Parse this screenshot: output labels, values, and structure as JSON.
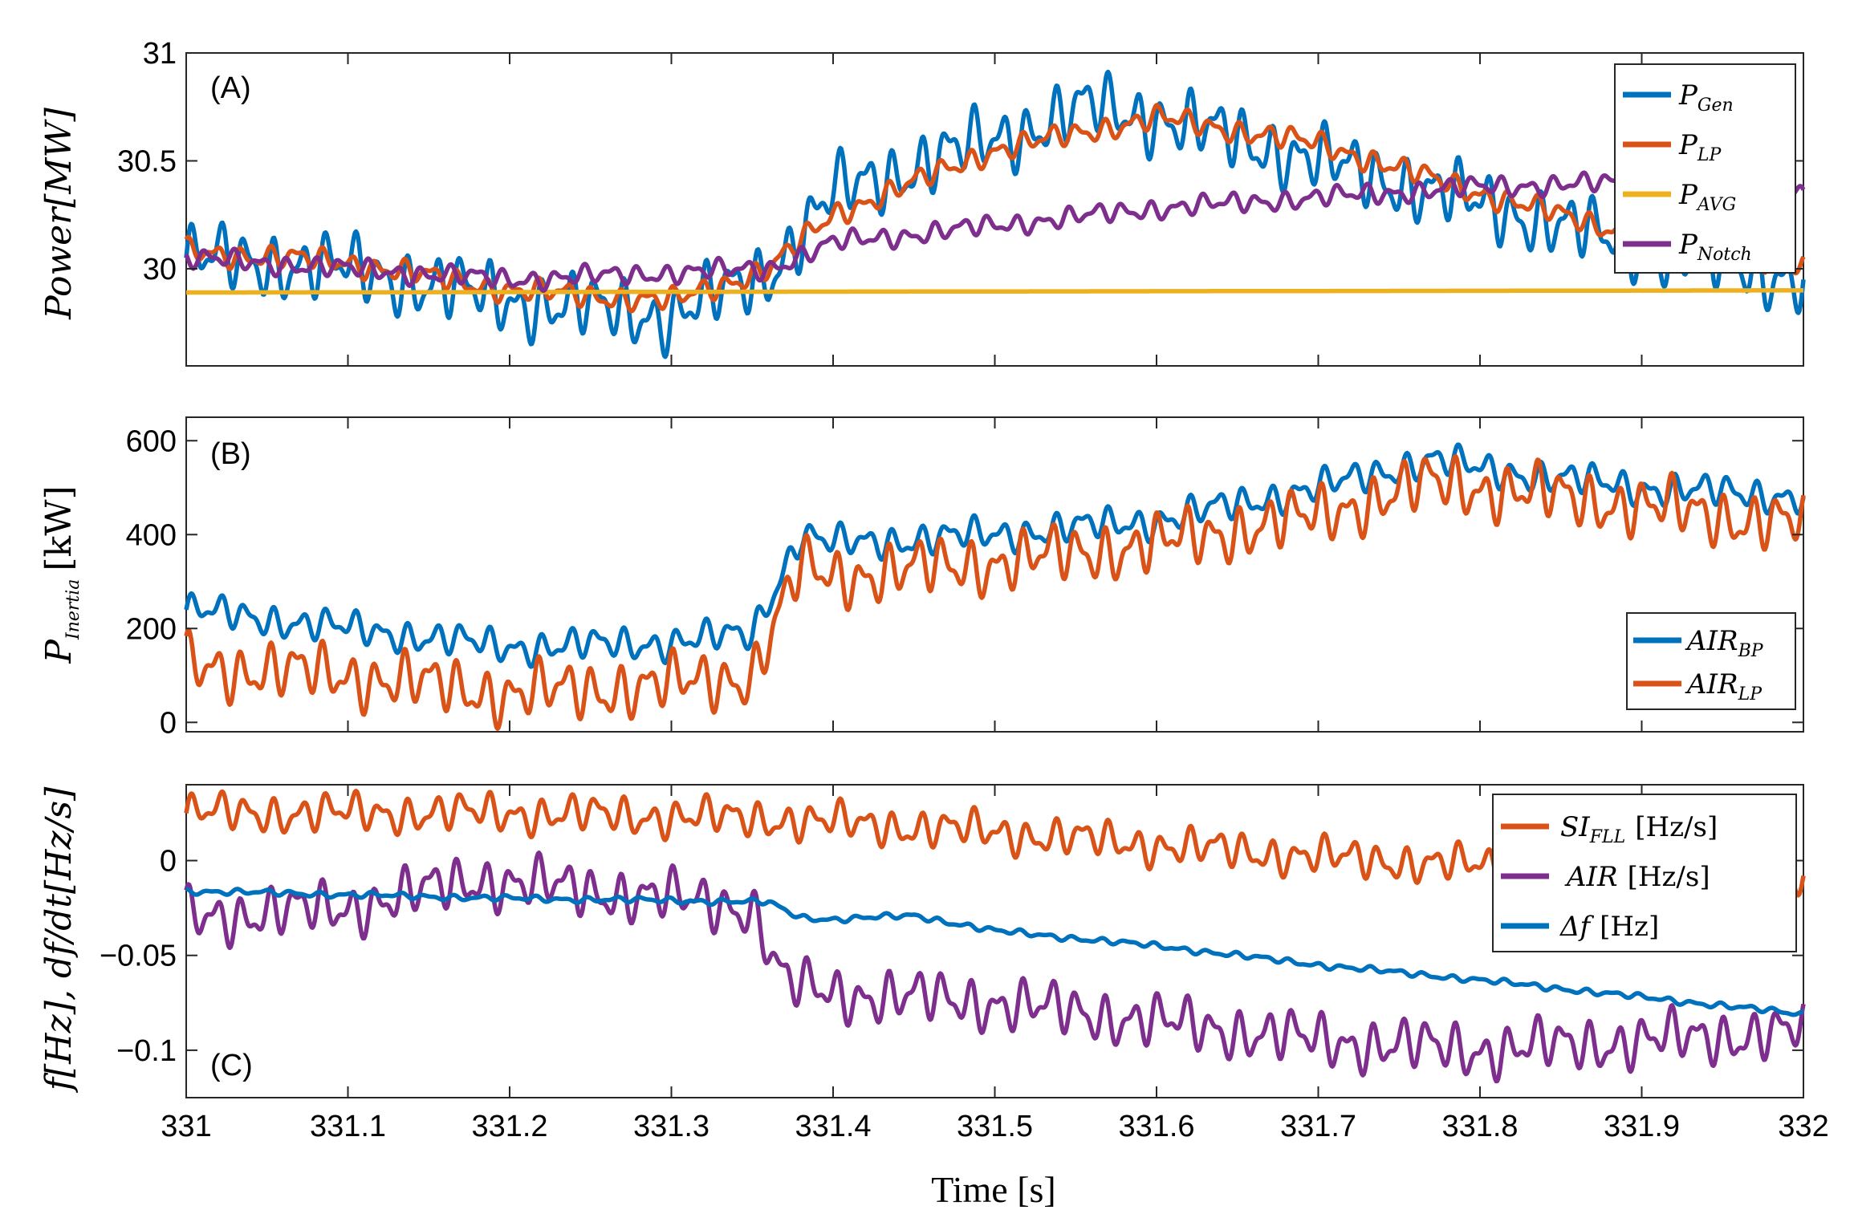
{
  "chart_data": [
    {
      "type": "line",
      "panel_tag": "(A)",
      "ylabel": {
        "main": "Power",
        "unit": "[MW]"
      },
      "xlim": [
        331,
        332
      ],
      "ylim": [
        29.55,
        31
      ],
      "yticks": [
        "30",
        "30.5",
        "31"
      ],
      "ytick_values": [
        30,
        30.5,
        31
      ],
      "legend_position": "top-right",
      "series": [
        {
          "name": "P",
          "sub": "Gen",
          "color": "#0072BD",
          "x": [
            331.0,
            331.1,
            331.2,
            331.3,
            331.36,
            331.4,
            331.5,
            331.56,
            331.6,
            331.7,
            331.8,
            331.9,
            332.0
          ],
          "y": [
            30.05,
            30.0,
            29.85,
            29.78,
            29.98,
            30.35,
            30.6,
            30.75,
            30.7,
            30.5,
            30.3,
            30.1,
            29.95
          ],
          "ripple": 0.2
        },
        {
          "name": "P",
          "sub": "LP",
          "color": "#D95319",
          "x": [
            331.0,
            331.1,
            331.2,
            331.3,
            331.36,
            331.4,
            331.5,
            331.6,
            331.7,
            331.8,
            331.9,
            332.0
          ],
          "y": [
            30.08,
            30.03,
            29.9,
            29.85,
            30.0,
            30.25,
            30.55,
            30.7,
            30.58,
            30.35,
            30.15,
            30.0
          ],
          "ripple": 0.07
        },
        {
          "name": "P",
          "sub": "AVG",
          "color": "#EDB120",
          "x": [
            331.0,
            332.0
          ],
          "y": [
            29.89,
            29.9
          ],
          "ripple": 0
        },
        {
          "name": "P",
          "sub": "Notch",
          "color": "#7E2F8E",
          "x": [
            331.0,
            331.2,
            331.36,
            331.4,
            331.5,
            331.6,
            331.7,
            331.8,
            331.9,
            332.0
          ],
          "y": [
            30.05,
            29.95,
            30.0,
            30.12,
            30.2,
            30.28,
            30.33,
            30.38,
            30.4,
            30.35
          ],
          "ripple": 0.06
        }
      ]
    },
    {
      "type": "line",
      "panel_tag": "(B)",
      "ylabel": {
        "main": "P",
        "sub": "Inertia",
        "unit": "[kW]"
      },
      "xlim": [
        331,
        332
      ],
      "ylim": [
        -20,
        650
      ],
      "yticks": [
        "0",
        "200",
        "400",
        "600"
      ],
      "ytick_values": [
        0,
        200,
        400,
        600
      ],
      "legend_position": "bottom-right",
      "series": [
        {
          "name": "AIR",
          "sub": "BP",
          "color": "#0072BD",
          "x": [
            331.0,
            331.1,
            331.2,
            331.3,
            331.35,
            331.38,
            331.4,
            331.5,
            331.6,
            331.7,
            331.77,
            331.8,
            331.9,
            332.0
          ],
          "y": [
            240,
            200,
            160,
            170,
            190,
            400,
            380,
            400,
            430,
            500,
            560,
            540,
            500,
            480
          ],
          "ripple": 45
        },
        {
          "name": "AIR",
          "sub": "LP",
          "color": "#D95319",
          "x": [
            331.0,
            331.1,
            331.2,
            331.3,
            331.35,
            331.38,
            331.4,
            331.5,
            331.6,
            331.7,
            331.77,
            331.8,
            331.9,
            332.0
          ],
          "y": [
            120,
            100,
            60,
            80,
            100,
            330,
            310,
            340,
            380,
            440,
            510,
            500,
            460,
            420
          ],
          "ripple": 80
        }
      ]
    },
    {
      "type": "line",
      "panel_tag": "(C)",
      "ylabel": {
        "main": "f[Hz], df/dt[Hz/s]"
      },
      "xlim": [
        331,
        332
      ],
      "ylim": [
        -0.125,
        0.04
      ],
      "yticks": [
        "0",
        "−0.05",
        "−0.1"
      ],
      "ytick_values": [
        0,
        -0.05,
        -0.1
      ],
      "xticks": [
        "331",
        "331.1",
        "331.2",
        "331.3",
        "331.4",
        "331.5",
        "331.6",
        "331.7",
        "331.8",
        "331.9",
        "332"
      ],
      "xtick_values": [
        331,
        331.1,
        331.2,
        331.3,
        331.4,
        331.5,
        331.6,
        331.7,
        331.8,
        331.9,
        332
      ],
      "xlabel": "Time [s]",
      "legend_position": "top-right",
      "series": [
        {
          "name": "SI",
          "sub": "FLL",
          "unit": "[Hz/s]",
          "color": "#D95319",
          "x": [
            331.0,
            331.2,
            331.36,
            331.4,
            331.5,
            331.6,
            331.7,
            331.8,
            331.9,
            332.0
          ],
          "y": [
            0.025,
            0.025,
            0.022,
            0.02,
            0.015,
            0.008,
            0.002,
            -0.003,
            -0.006,
            -0.008
          ],
          "ripple": 0.013
        },
        {
          "name": "AIR",
          "sub": "",
          "unit": "[Hz/s]",
          "color": "#7E2F8E",
          "x": [
            331.0,
            331.1,
            331.18,
            331.3,
            331.35,
            331.37,
            331.4,
            331.5,
            331.6,
            331.7,
            331.8,
            331.9,
            332.0
          ],
          "y": [
            -0.03,
            -0.025,
            -0.01,
            -0.02,
            -0.025,
            -0.065,
            -0.07,
            -0.075,
            -0.085,
            -0.095,
            -0.1,
            -0.095,
            -0.09
          ],
          "ripple": 0.018
        },
        {
          "name": "Δf",
          "sub": "",
          "unit": "[Hz]",
          "color": "#0072BD",
          "x": [
            331.0,
            331.1,
            331.2,
            331.3,
            331.36,
            331.38,
            331.4,
            331.45,
            331.5,
            331.6,
            331.7,
            331.8,
            331.9,
            332.0
          ],
          "y": [
            -0.016,
            -0.018,
            -0.02,
            -0.021,
            -0.022,
            -0.03,
            -0.031,
            -0.029,
            -0.037,
            -0.045,
            -0.055,
            -0.063,
            -0.072,
            -0.081
          ],
          "ripple": 0.002
        }
      ]
    }
  ]
}
